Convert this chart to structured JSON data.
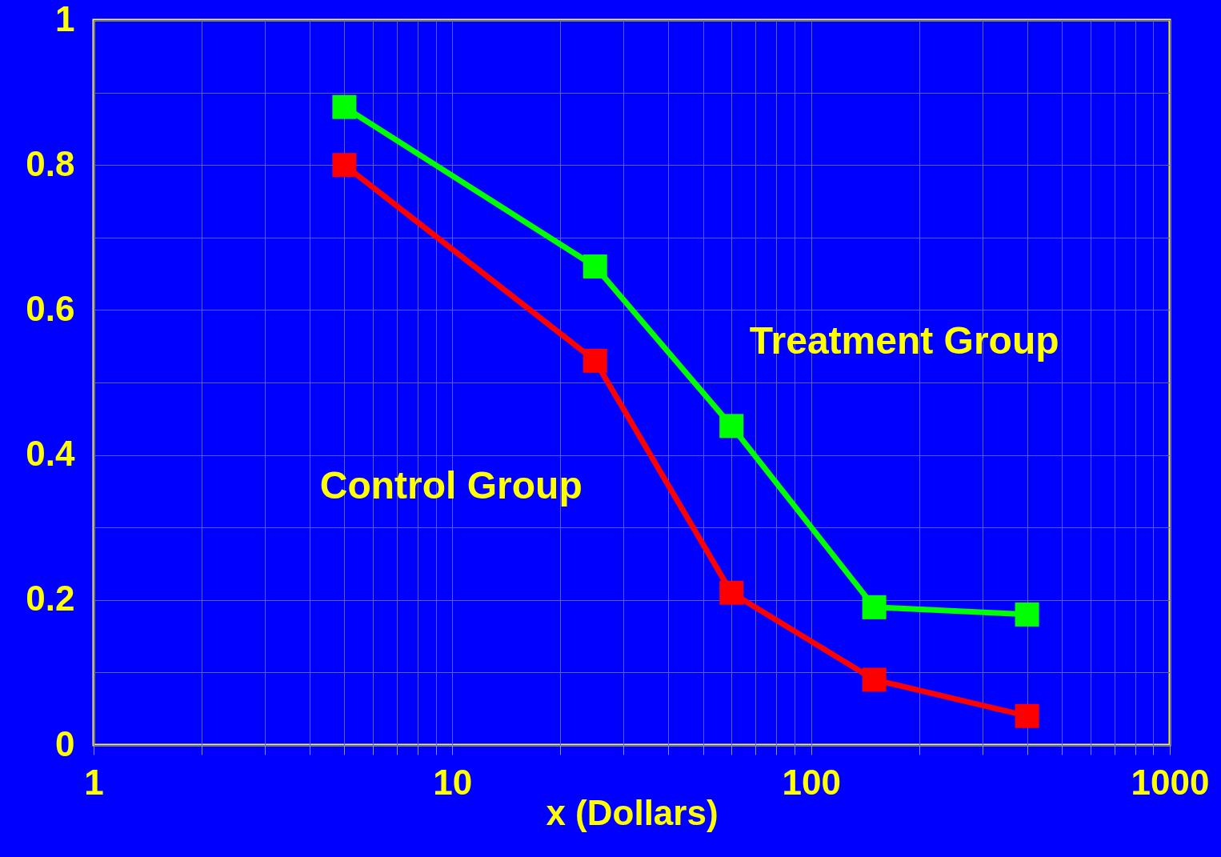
{
  "chart_data": {
    "type": "line",
    "xlabel": "x (Dollars)",
    "log": "x",
    "grid": true,
    "legend": false,
    "marker": "square",
    "line_style": "solid",
    "xlim": [
      1,
      1000
    ],
    "ylim": [
      0,
      1
    ],
    "xticks": [
      1,
      {
        "value": 2,
        "label": null
      },
      {
        "value": 3,
        "label": null
      },
      {
        "value": 4,
        "label": null
      },
      {
        "value": 5,
        "label": null
      },
      {
        "value": 6,
        "label": null
      },
      {
        "value": 7,
        "label": null
      },
      {
        "value": 8,
        "label": null
      },
      {
        "value": 9,
        "label": null
      },
      10,
      {
        "value": 20,
        "label": null
      },
      {
        "value": 30,
        "label": null
      },
      {
        "value": 40,
        "label": null
      },
      {
        "value": 50,
        "label": null
      },
      {
        "value": 60,
        "label": null
      },
      {
        "value": 70,
        "label": null
      },
      {
        "value": 80,
        "label": null
      },
      {
        "value": 90,
        "label": null
      },
      100,
      {
        "value": 200,
        "label": null
      },
      {
        "value": 300,
        "label": null
      },
      {
        "value": 400,
        "label": null
      },
      {
        "value": 500,
        "label": null
      },
      {
        "value": 600,
        "label": null
      },
      {
        "value": 700,
        "label": null
      },
      {
        "value": 800,
        "label": null
      },
      {
        "value": 900,
        "label": null
      },
      1000
    ],
    "yticks": [
      0,
      {
        "value": 0.1,
        "label": null
      },
      0.2,
      {
        "value": 0.3,
        "label": null
      },
      0.4,
      {
        "value": 0.5,
        "label": null
      },
      0.6,
      {
        "value": 0.7,
        "label": null
      },
      0.8,
      {
        "value": 0.9,
        "label": null
      },
      1
    ],
    "x": [
      5,
      25,
      60,
      150,
      400
    ],
    "series": [
      {
        "name": "Treatment Group",
        "color": "#00ff00",
        "values": [
          0.88,
          0.66,
          0.44,
          0.19,
          0.18
        ]
      },
      {
        "name": "Control Group",
        "color": "#ff0000",
        "values": [
          0.8,
          0.53,
          0.21,
          0.09,
          0.04
        ]
      }
    ]
  }
}
